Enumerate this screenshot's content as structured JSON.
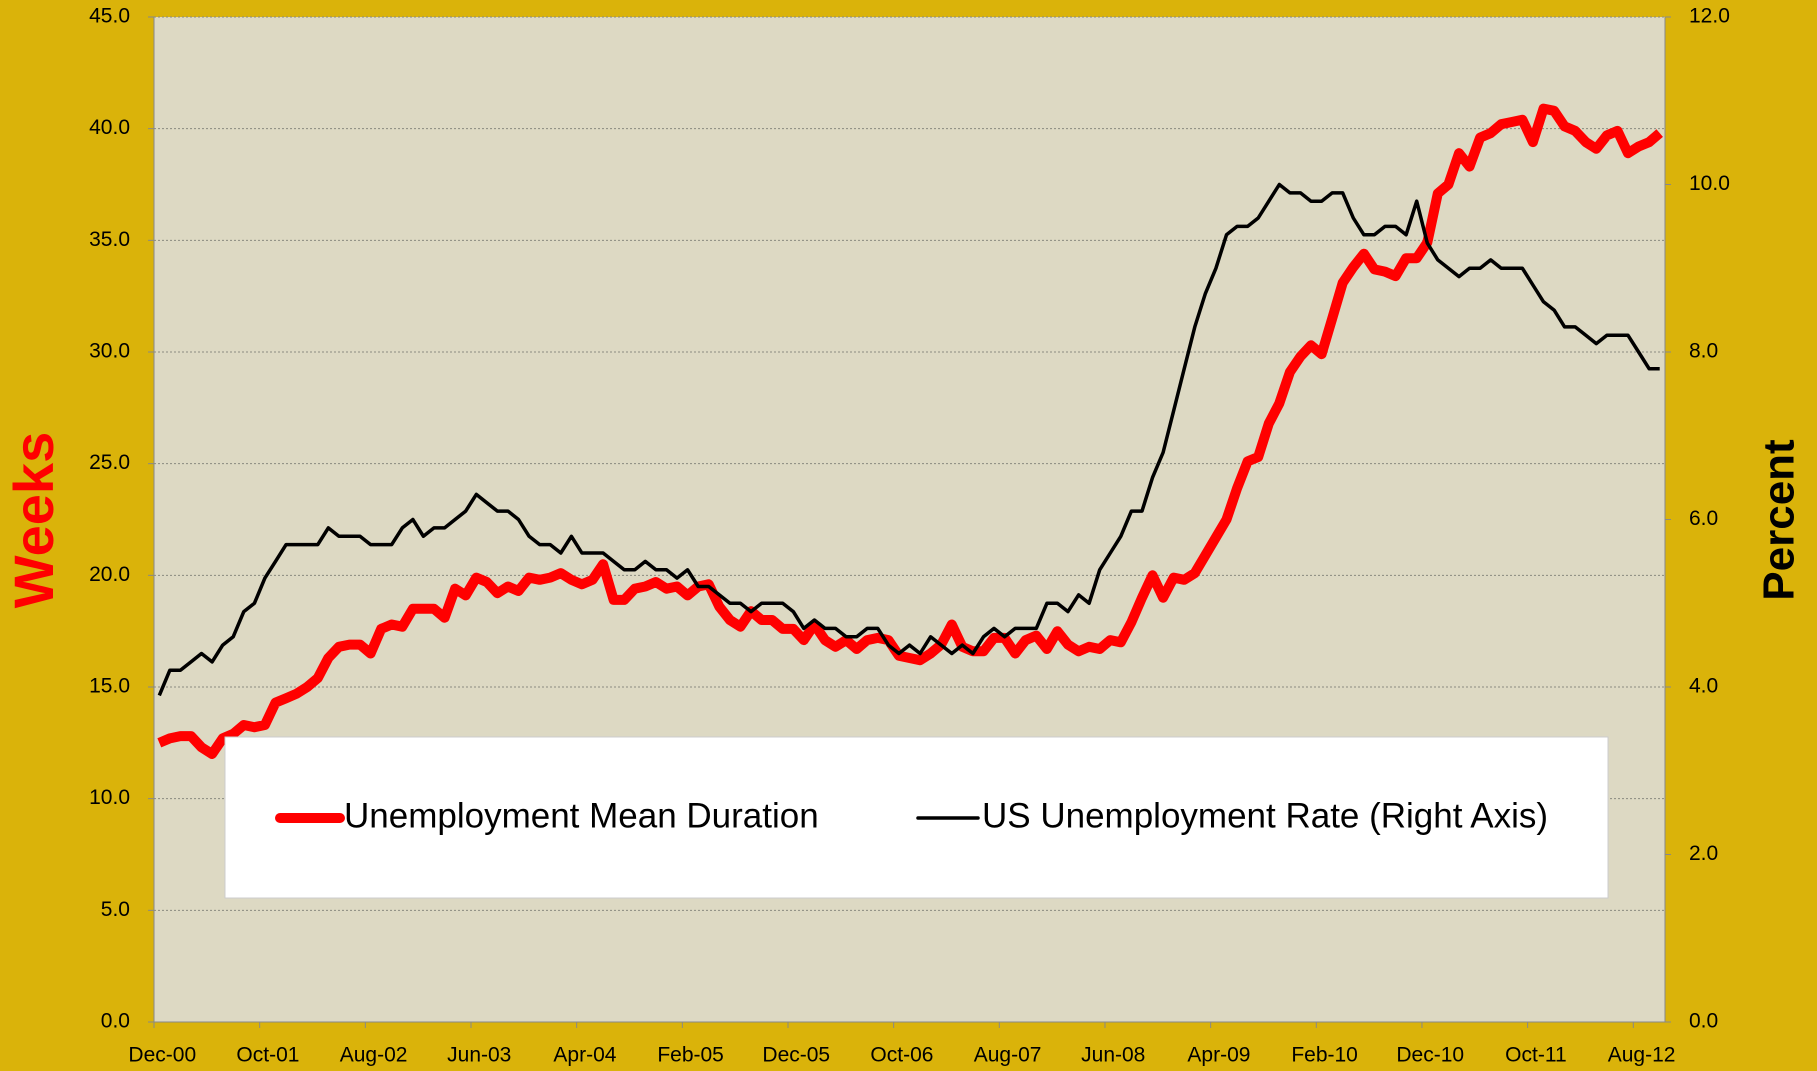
{
  "chart_data": {
    "type": "line",
    "categories": [
      "Dec-00",
      null,
      null,
      null,
      null,
      null,
      null,
      null,
      null,
      null,
      "Oct-01",
      null,
      null,
      null,
      null,
      null,
      null,
      null,
      null,
      null,
      "Aug-02",
      null,
      null,
      null,
      null,
      null,
      null,
      null,
      null,
      null,
      "Jun-03",
      null,
      null,
      null,
      null,
      null,
      null,
      null,
      null,
      null,
      "Apr-04",
      null,
      null,
      null,
      null,
      null,
      null,
      null,
      null,
      null,
      "Feb-05",
      null,
      null,
      null,
      null,
      null,
      null,
      null,
      null,
      null,
      "Dec-05",
      null,
      null,
      null,
      null,
      null,
      null,
      null,
      null,
      null,
      "Oct-06",
      null,
      null,
      null,
      null,
      null,
      null,
      null,
      null,
      null,
      "Aug-07",
      null,
      null,
      null,
      null,
      null,
      null,
      null,
      null,
      null,
      "Jun-08",
      null,
      null,
      null,
      null,
      null,
      null,
      null,
      null,
      null,
      "Apr-09",
      null,
      null,
      null,
      null,
      null,
      null,
      null,
      null,
      null,
      "Feb-10",
      null,
      null,
      null,
      null,
      null,
      null,
      null,
      null,
      null,
      "Dec-10",
      null,
      null,
      null,
      null,
      null,
      null,
      null,
      null,
      null,
      "Oct-11",
      null,
      null,
      null,
      null,
      null,
      null,
      null,
      null,
      null,
      "Aug-12",
      null,
      null
    ],
    "series": [
      {
        "name": "Unemployment Mean Duration",
        "color": "#ff0000",
        "axis": "y",
        "values": [
          12.5,
          12.7,
          12.8,
          12.8,
          12.3,
          12.0,
          12.7,
          12.9,
          13.3,
          13.2,
          13.3,
          14.3,
          14.5,
          14.7,
          15.0,
          15.4,
          16.3,
          16.8,
          16.9,
          16.9,
          16.5,
          17.6,
          17.8,
          17.7,
          18.5,
          18.5,
          18.5,
          18.1,
          19.4,
          19.1,
          19.9,
          19.7,
          19.2,
          19.5,
          19.3,
          19.9,
          19.8,
          19.9,
          20.1,
          19.8,
          19.6,
          19.8,
          20.5,
          18.9,
          18.9,
          19.4,
          19.5,
          19.7,
          19.4,
          19.5,
          19.1,
          19.5,
          19.6,
          18.6,
          18.0,
          17.7,
          18.4,
          18.0,
          18.0,
          17.6,
          17.6,
          17.1,
          17.8,
          17.1,
          16.8,
          17.1,
          16.7,
          17.1,
          17.2,
          17.1,
          16.4,
          16.3,
          16.2,
          16.5,
          16.9,
          17.8,
          16.8,
          16.6,
          16.6,
          17.2,
          17.2,
          16.5,
          17.1,
          17.3,
          16.7,
          17.5,
          16.9,
          16.6,
          16.8,
          16.7,
          17.1,
          17.0,
          17.9,
          19.0,
          20.0,
          19.0,
          19.9,
          19.8,
          20.1,
          20.9,
          21.7,
          22.5,
          23.9,
          25.1,
          25.3,
          26.8,
          27.7,
          29.1,
          29.8,
          30.3,
          29.9,
          31.5,
          33.1,
          33.8,
          34.4,
          33.7,
          33.6,
          33.4,
          34.2,
          34.2,
          34.9,
          37.1,
          37.5,
          38.9,
          38.3,
          39.6,
          39.8,
          40.2,
          40.3,
          40.4,
          39.4,
          40.9,
          40.8,
          40.1,
          39.9,
          39.4,
          39.1,
          39.7,
          39.9,
          38.9,
          39.2,
          39.4,
          39.8
        ]
      },
      {
        "name": "US Unemployment Rate (Right Axis)",
        "color": "#000000",
        "axis": "y2",
        "values": [
          3.9,
          4.2,
          4.2,
          4.3,
          4.4,
          4.3,
          4.5,
          4.6,
          4.9,
          5.0,
          5.3,
          5.5,
          5.7,
          5.7,
          5.7,
          5.7,
          5.9,
          5.8,
          5.8,
          5.8,
          5.7,
          5.7,
          5.7,
          5.9,
          6.0,
          5.8,
          5.9,
          5.9,
          6.0,
          6.1,
          6.3,
          6.2,
          6.1,
          6.1,
          6.0,
          5.8,
          5.7,
          5.7,
          5.6,
          5.8,
          5.6,
          5.6,
          5.6,
          5.5,
          5.4,
          5.4,
          5.5,
          5.4,
          5.4,
          5.3,
          5.4,
          5.2,
          5.2,
          5.1,
          5.0,
          5.0,
          4.9,
          5.0,
          5.0,
          5.0,
          4.9,
          4.7,
          4.8,
          4.7,
          4.7,
          4.6,
          4.6,
          4.7,
          4.7,
          4.5,
          4.4,
          4.5,
          4.4,
          4.6,
          4.5,
          4.4,
          4.5,
          4.4,
          4.6,
          4.7,
          4.6,
          4.7,
          4.7,
          4.7,
          5.0,
          5.0,
          4.9,
          5.1,
          5.0,
          5.4,
          5.6,
          5.8,
          6.1,
          6.1,
          6.5,
          6.8,
          7.3,
          7.8,
          8.3,
          8.7,
          9.0,
          9.4,
          9.5,
          9.5,
          9.6,
          9.8,
          10.0,
          9.9,
          9.9,
          9.8,
          9.8,
          9.9,
          9.9,
          9.6,
          9.4,
          9.4,
          9.5,
          9.5,
          9.4,
          9.8,
          9.3,
          9.1,
          9.0,
          8.9,
          9.0,
          9.0,
          9.1,
          9.0,
          9.0,
          9.0,
          8.8,
          8.6,
          8.5,
          8.3,
          8.3,
          8.2,
          8.1,
          8.2,
          8.2,
          8.2,
          8.0,
          7.8,
          7.8
        ]
      }
    ],
    "ylabel": "Weeks",
    "y2label": "Percent",
    "ylim": [
      0,
      45
    ],
    "yticks": [
      {
        "value": 0,
        "label": "0.0"
      },
      {
        "value": 5,
        "label": "5.0"
      },
      {
        "value": 10,
        "label": "10.0"
      },
      {
        "value": 15,
        "label": "15.0"
      },
      {
        "value": 20,
        "label": "20.0"
      },
      {
        "value": 25,
        "label": "25.0"
      },
      {
        "value": 30,
        "label": "30.0"
      },
      {
        "value": 35,
        "label": "35.0"
      },
      {
        "value": 40,
        "label": "40.0"
      },
      {
        "value": 45,
        "label": "45.0"
      }
    ],
    "y2lim": [
      0,
      12
    ],
    "y2ticks": [
      {
        "value": 0,
        "label": "0.0"
      },
      {
        "value": 2,
        "label": "2.0"
      },
      {
        "value": 4,
        "label": "4.0"
      },
      {
        "value": 6,
        "label": "6.0"
      },
      {
        "value": 8,
        "label": "8.0"
      },
      {
        "value": 10,
        "label": "10.0"
      },
      {
        "value": 12,
        "label": "12.0"
      }
    ],
    "grid": true,
    "legend": "bottom"
  }
}
